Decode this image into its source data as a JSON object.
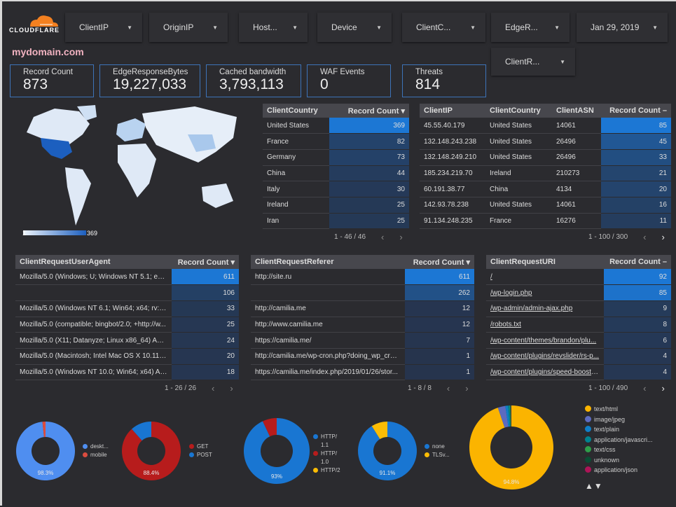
{
  "brand": {
    "name": "CLOUDFLARE",
    "orange": "#f38020"
  },
  "site": "mydomain.com",
  "filters": [
    "ClientIP",
    "OriginIP",
    "Host...",
    "Device",
    "ClientC...",
    "EdgeR...",
    "Jan 29, 2019",
    "ClientR..."
  ],
  "kpis": [
    {
      "label": "Record Count",
      "value": "873"
    },
    {
      "label": "EdgeResponseBytes",
      "value": "19,227,033"
    },
    {
      "label": "Cached bandwidth",
      "value": "3,793,113"
    },
    {
      "label": "WAF Events",
      "value": "0"
    },
    {
      "label": "Threats",
      "value": "814"
    }
  ],
  "map": {
    "scale_min": "1",
    "scale_max": "369"
  },
  "colors": {
    "bar_max": "#1c77d4",
    "bar_min": "#26344d",
    "accent": "#3d73b8"
  },
  "country_table": {
    "headers": [
      "ClientCountry",
      "Record Count ▾"
    ],
    "rows": [
      [
        "United States",
        "369"
      ],
      [
        "France",
        "82"
      ],
      [
        "Germany",
        "73"
      ],
      [
        "China",
        "44"
      ],
      [
        "Italy",
        "30"
      ],
      [
        "Ireland",
        "25"
      ],
      [
        "Iran",
        "25"
      ]
    ],
    "pager": "1 - 46 / 46"
  },
  "ip_table": {
    "headers": [
      "ClientIP",
      "ClientCountry",
      "ClientASN",
      "Record Count –"
    ],
    "rows": [
      [
        "45.55.40.179",
        "United States",
        "14061",
        "85"
      ],
      [
        "132.148.243.238",
        "United States",
        "26496",
        "45"
      ],
      [
        "132.148.249.210",
        "United States",
        "26496",
        "33"
      ],
      [
        "185.234.219.70",
        "Ireland",
        "210273",
        "21"
      ],
      [
        "60.191.38.77",
        "China",
        "4134",
        "20"
      ],
      [
        "142.93.78.238",
        "United States",
        "14061",
        "16"
      ],
      [
        "91.134.248.235",
        "France",
        "16276",
        "11"
      ]
    ],
    "pager": "1 - 100 / 300"
  },
  "ua_table": {
    "headers": [
      "ClientRequestUserAgent",
      "Record Count ▾"
    ],
    "rows": [
      [
        "Mozilla/5.0 (Windows; U; Windows NT 5.1; en-U...",
        "611"
      ],
      [
        "",
        "106"
      ],
      [
        "Mozilla/5.0 (Windows NT 6.1; Win64; x64; rv:64....",
        "33"
      ],
      [
        "Mozilla/5.0 (compatible; bingbot/2.0; +http://w...",
        "25"
      ],
      [
        "Mozilla/5.0 (X11; Datanyze; Linux x86_64) Appl...",
        "24"
      ],
      [
        "Mozilla/5.0 (Macintosh; Intel Mac OS X 10.11; r...",
        "20"
      ],
      [
        "Mozilla/5.0 (Windows NT 10.0; Win64; x64) App...",
        "18"
      ]
    ],
    "pager": "1 - 26 / 26"
  },
  "ref_table": {
    "headers": [
      "ClientRequestReferer",
      "Record Count ▾"
    ],
    "rows": [
      [
        "http://site.ru",
        "611"
      ],
      [
        "",
        "262"
      ],
      [
        "http://camilia.me",
        "12"
      ],
      [
        "http://www.camilia.me",
        "12"
      ],
      [
        "https://camilia.me/",
        "7"
      ],
      [
        "http://camilia.me/wp-cron.php?doing_wp_cron...",
        "1"
      ],
      [
        "https://camilia.me/index.php/2019/01/26/stor...",
        "1"
      ]
    ],
    "pager": "1 - 8 / 8"
  },
  "uri_table": {
    "headers": [
      "ClientRequestURI",
      "Record Count –"
    ],
    "rows": [
      [
        "/",
        "92"
      ],
      [
        "/wp-login.php",
        "85"
      ],
      [
        "/wp-admin/admin-ajax.php",
        "9"
      ],
      [
        "/robots.txt",
        "8"
      ],
      [
        "/wp-content/themes/brandon/plu...",
        "6"
      ],
      [
        "/wp-content/plugins/revslider/rs-p...",
        "4"
      ],
      [
        "/wp-content/plugins/speed-booste...",
        "4"
      ]
    ],
    "pager": "1 - 100 / 490"
  },
  "pager_prev": "‹",
  "pager_next": "›",
  "chart_data": [
    {
      "type": "pie",
      "donut": true,
      "label": "98.3%",
      "series": [
        {
          "name": "deskt...",
          "value": 98.3,
          "color": "#4f8ef0"
        },
        {
          "name": "mobile",
          "value": 1.7,
          "color": "#db4c3f"
        }
      ]
    },
    {
      "type": "pie",
      "donut": true,
      "label": "88.4%",
      "series": [
        {
          "name": "GET",
          "value": 88.4,
          "color": "#b71c1c"
        },
        {
          "name": "POST",
          "value": 11.6,
          "color": "#1976d2"
        }
      ]
    },
    {
      "type": "pie",
      "donut": true,
      "label": "93%",
      "series": [
        {
          "name": "HTTP/ 1.1",
          "value": 93,
          "color": "#1976d2"
        },
        {
          "name": "HTTP/ 1.0",
          "value": 7,
          "color": "#b71c1c"
        },
        {
          "name": "HTTP/2",
          "value": 0,
          "color": "#fbbc04"
        }
      ]
    },
    {
      "type": "pie",
      "donut": true,
      "label": "91.1%",
      "series": [
        {
          "name": "none",
          "value": 91.1,
          "color": "#1976d2"
        },
        {
          "name": "TLSv...",
          "value": 8.9,
          "color": "#fbbc04"
        }
      ]
    },
    {
      "type": "pie",
      "donut": true,
      "label": "94.8%",
      "series": [
        {
          "name": "text/html",
          "value": 94.8,
          "color": "#fbb400"
        },
        {
          "name": "image/jpeg",
          "value": 2.9,
          "color": "#5c6bc0"
        },
        {
          "name": "text/plain",
          "value": 1.0,
          "color": "#0f7fc7"
        },
        {
          "name": "application/javascri...",
          "value": 0.6,
          "color": "#00838f"
        },
        {
          "name": "text/css",
          "value": 0.3,
          "color": "#2e9e4a"
        },
        {
          "name": "unknown",
          "value": 0.3,
          "color": "#0b4d34"
        },
        {
          "name": "application/json",
          "value": 0.1,
          "color": "#ad1457"
        }
      ],
      "legend_nav": "▲▼"
    }
  ]
}
